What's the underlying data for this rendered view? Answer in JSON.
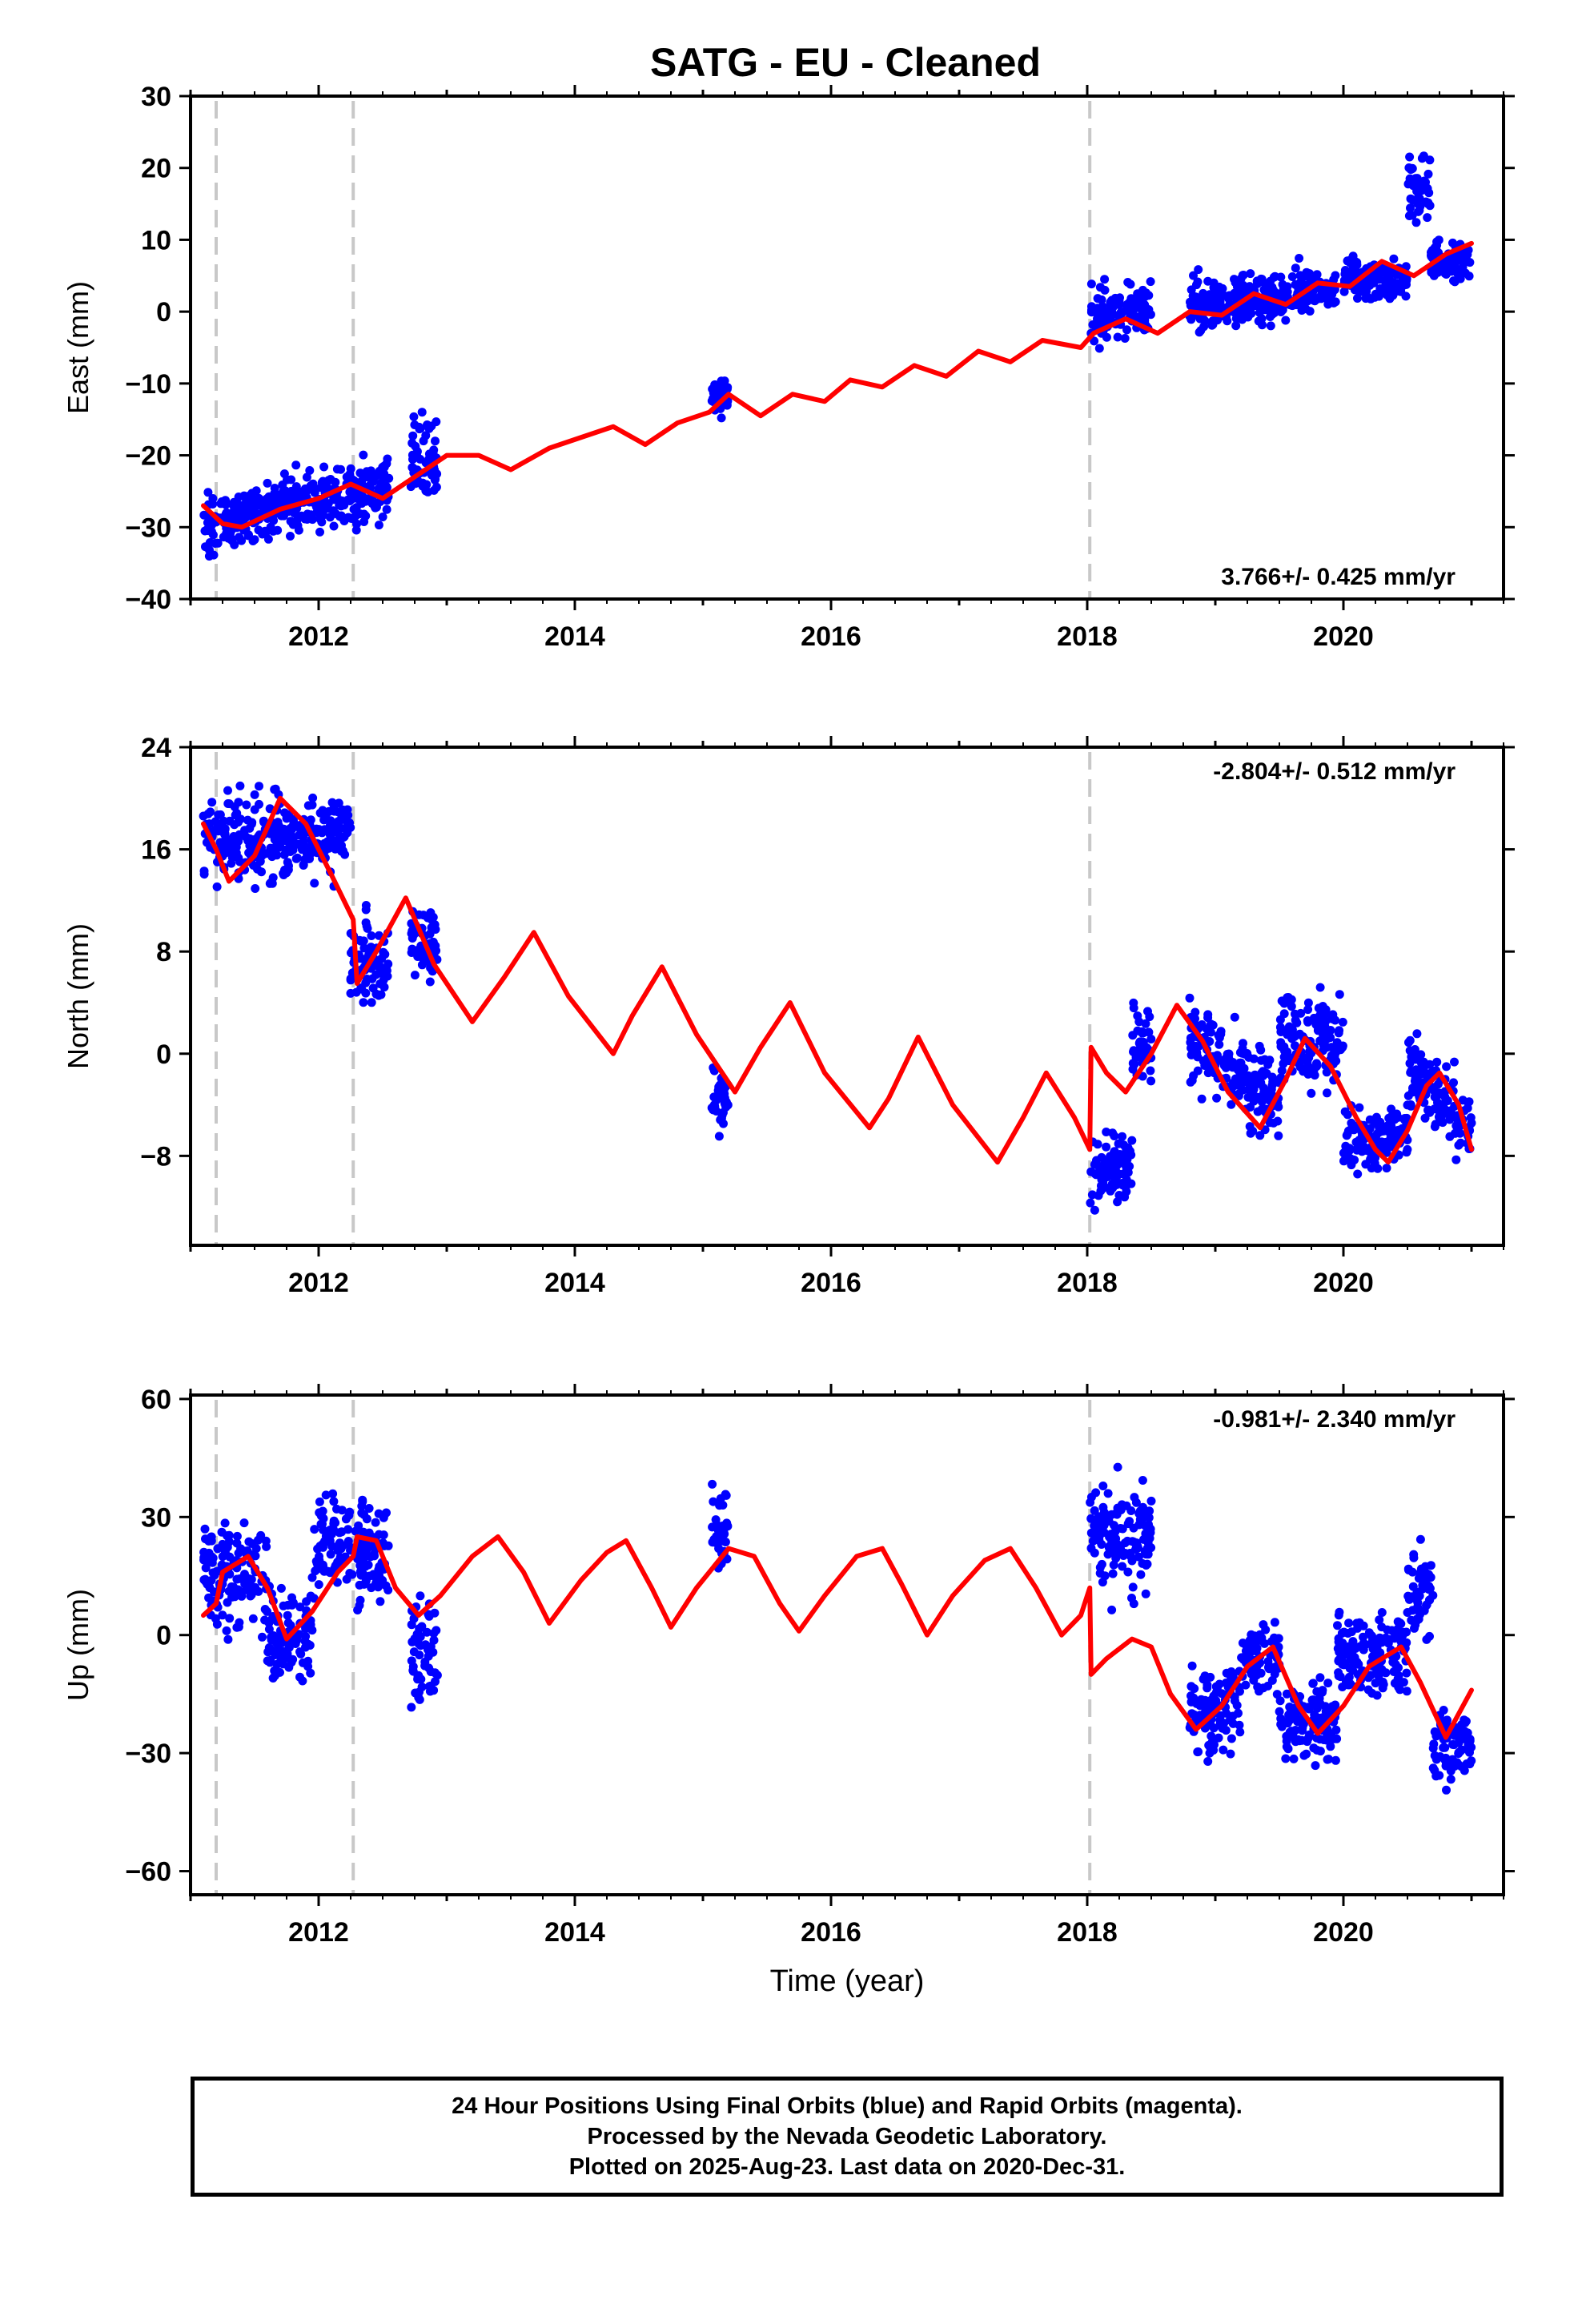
{
  "title": "SATG  - EU - Cleaned",
  "footer": {
    "line1": "24 Hour Positions Using Final Orbits (blue) and Rapid Orbits (magenta).",
    "line2": "Processed by the Nevada Geodetic Laboratory.",
    "line3": "Plotted on 2025-Aug-23. Last data on 2020-Dec-31."
  },
  "colors": {
    "data_points": "#0000ff",
    "model_fit": "#ff0000",
    "event_lines": "#c8c8c8"
  },
  "chart_data": [
    {
      "type": "scatter",
      "component": "east",
      "ylabel": "East (mm)",
      "xlabel": "",
      "xlim": [
        2011.0,
        2021.25
      ],
      "ylim": [
        -40,
        30
      ],
      "yticks": [
        30,
        20,
        10,
        0,
        -10,
        -20,
        -30,
        -40
      ],
      "xticks": [
        2012,
        2014,
        2016,
        2018,
        2020
      ],
      "velocity_label": "3.766+/- 0.425 mm/yr",
      "velocity_position": "bottom-right",
      "event_lines": [
        2011.2,
        2012.27,
        2018.02
      ],
      "segments": [
        {
          "start": 2011.1,
          "end": 2012.55,
          "center": -27,
          "spread": 4.5,
          "trend": 5.0
        },
        {
          "start": 2012.72,
          "end": 2012.93,
          "center": -20,
          "spread": 6.0,
          "trend": 0
        },
        {
          "start": 2015.07,
          "end": 2015.2,
          "center": -12,
          "spread": 2.5,
          "trend": 0
        },
        {
          "start": 2018.02,
          "end": 2018.5,
          "center": 0,
          "spread": 4.0,
          "trend": 0
        },
        {
          "start": 2018.8,
          "end": 2019.95,
          "center": 2,
          "spread": 3.5,
          "trend": 2.0
        },
        {
          "start": 2020.0,
          "end": 2020.5,
          "center": 4.5,
          "spread": 3.0,
          "trend": 0
        },
        {
          "start": 2020.5,
          "end": 2020.68,
          "center": 17,
          "spread": 6.0,
          "trend": 0
        },
        {
          "start": 2020.68,
          "end": 2021.0,
          "center": 7,
          "spread": 3.0,
          "trend": 0
        }
      ],
      "fit": [
        [
          2011.1,
          -27
        ],
        [
          2011.25,
          -29.5
        ],
        [
          2011.4,
          -30
        ],
        [
          2011.7,
          -27.5
        ],
        [
          2012.0,
          -26
        ],
        [
          2012.25,
          -24
        ],
        [
          2012.5,
          -26
        ],
        [
          2012.75,
          -23
        ],
        [
          2013.0,
          -20
        ],
        [
          2013.25,
          -20
        ],
        [
          2013.5,
          -22
        ],
        [
          2013.8,
          -19
        ],
        [
          2014.05,
          -17.5
        ],
        [
          2014.3,
          -16
        ],
        [
          2014.55,
          -18.5
        ],
        [
          2014.8,
          -15.5
        ],
        [
          2015.05,
          -14
        ],
        [
          2015.2,
          -11.5
        ],
        [
          2015.45,
          -14.5
        ],
        [
          2015.7,
          -11.5
        ],
        [
          2015.95,
          -12.5
        ],
        [
          2016.15,
          -9.5
        ],
        [
          2016.4,
          -10.5
        ],
        [
          2016.65,
          -7.5
        ],
        [
          2016.9,
          -9
        ],
        [
          2017.15,
          -5.5
        ],
        [
          2017.4,
          -7
        ],
        [
          2017.65,
          -4
        ],
        [
          2017.95,
          -5
        ],
        [
          2018.05,
          -3
        ],
        [
          2018.3,
          -1
        ],
        [
          2018.55,
          -3
        ],
        [
          2018.8,
          0
        ],
        [
          2019.05,
          -0.5
        ],
        [
          2019.3,
          2.5
        ],
        [
          2019.55,
          1
        ],
        [
          2019.8,
          4
        ],
        [
          2020.05,
          3.5
        ],
        [
          2020.3,
          7
        ],
        [
          2020.55,
          5
        ],
        [
          2020.8,
          8
        ],
        [
          2021.0,
          9.5
        ]
      ]
    },
    {
      "type": "scatter",
      "component": "north",
      "ylabel": "North (mm)",
      "xlabel": "",
      "xlim": [
        2011.0,
        2021.25
      ],
      "ylim": [
        -15,
        24
      ],
      "yticks": [
        24,
        16,
        8,
        0,
        -8
      ],
      "xticks": [
        2012,
        2014,
        2016,
        2018,
        2020
      ],
      "velocity_label": "-2.804+/- 0.512 mm/yr",
      "velocity_position": "top-right",
      "event_lines": [
        2011.2,
        2012.27,
        2018.02
      ],
      "segments": [
        {
          "start": 2011.1,
          "end": 2012.25,
          "center": 17,
          "spread": 3.5,
          "trend": 0
        },
        {
          "start": 2012.25,
          "end": 2012.55,
          "center": 7,
          "spread": 3.5,
          "trend": 0
        },
        {
          "start": 2012.72,
          "end": 2012.93,
          "center": 9,
          "spread": 3.0,
          "trend": 0
        },
        {
          "start": 2015.07,
          "end": 2015.2,
          "center": -3.5,
          "spread": 3.0,
          "trend": 0
        },
        {
          "start": 2018.02,
          "end": 2018.35,
          "center": -9,
          "spread": 3.0,
          "trend": 0
        },
        {
          "start": 2018.35,
          "end": 2018.5,
          "center": 1,
          "spread": 3.5,
          "trend": 0
        },
        {
          "start": 2018.8,
          "end": 2019.5,
          "center": -1.5,
          "spread": 3.5,
          "trend": -6.0
        },
        {
          "start": 2019.5,
          "end": 2020.0,
          "center": 1,
          "spread": 4.0,
          "trend": 0
        },
        {
          "start": 2020.0,
          "end": 2020.5,
          "center": -6.5,
          "spread": 2.5,
          "trend": 0
        },
        {
          "start": 2020.5,
          "end": 2021.0,
          "center": -3.5,
          "spread": 3.5,
          "trend": -4.0
        }
      ],
      "fit": [
        [
          2011.1,
          18
        ],
        [
          2011.2,
          16
        ],
        [
          2011.3,
          13.5
        ],
        [
          2011.5,
          15.5
        ],
        [
          2011.7,
          20
        ],
        [
          2011.9,
          18
        ],
        [
          2012.1,
          14
        ],
        [
          2012.27,
          10.5
        ],
        [
          2012.3,
          5.5
        ],
        [
          2012.45,
          8
        ],
        [
          2012.68,
          12.2
        ],
        [
          2012.9,
          7
        ],
        [
          2013.2,
          2.5
        ],
        [
          2013.45,
          6
        ],
        [
          2013.68,
          9.5
        ],
        [
          2013.95,
          4.5
        ],
        [
          2014.3,
          0
        ],
        [
          2014.45,
          3
        ],
        [
          2014.68,
          6.8
        ],
        [
          2014.95,
          1.5
        ],
        [
          2015.25,
          -3
        ],
        [
          2015.45,
          0.5
        ],
        [
          2015.68,
          4
        ],
        [
          2015.95,
          -1.5
        ],
        [
          2016.3,
          -5.8
        ],
        [
          2016.45,
          -3.5
        ],
        [
          2016.68,
          1.3
        ],
        [
          2016.95,
          -4
        ],
        [
          2017.3,
          -8.5
        ],
        [
          2017.5,
          -5
        ],
        [
          2017.68,
          -1.5
        ],
        [
          2017.9,
          -5
        ],
        [
          2018.02,
          -7.5
        ],
        [
          2018.03,
          0.5
        ],
        [
          2018.15,
          -1.5
        ],
        [
          2018.3,
          -3
        ],
        [
          2018.5,
          0
        ],
        [
          2018.7,
          3.8
        ],
        [
          2018.9,
          1
        ],
        [
          2019.1,
          -3
        ],
        [
          2019.35,
          -5.8
        ],
        [
          2019.55,
          -2
        ],
        [
          2019.7,
          1.2
        ],
        [
          2019.9,
          -1
        ],
        [
          2020.1,
          -5
        ],
        [
          2020.25,
          -7.5
        ],
        [
          2020.35,
          -8.5
        ],
        [
          2020.5,
          -6
        ],
        [
          2020.65,
          -2.5
        ],
        [
          2020.75,
          -1.5
        ],
        [
          2020.9,
          -4
        ],
        [
          2021.0,
          -7.5
        ]
      ]
    },
    {
      "type": "scatter",
      "component": "up",
      "ylabel": "Up (mm)",
      "xlabel": "Time (year)",
      "xlim": [
        2011.0,
        2021.25
      ],
      "ylim": [
        -66,
        61
      ],
      "yticks": [
        60,
        30,
        0,
        -30,
        -60
      ],
      "xticks": [
        2012,
        2014,
        2016,
        2018,
        2020
      ],
      "velocity_label": "-0.981+/- 2.340 mm/yr",
      "velocity_position": "top-right",
      "event_lines": [
        2011.2,
        2012.27,
        2018.02
      ],
      "segments": [
        {
          "start": 2011.1,
          "end": 2011.6,
          "center": 15,
          "spread": 14.0,
          "trend": 0
        },
        {
          "start": 2011.6,
          "end": 2011.95,
          "center": 0,
          "spread": 14.0,
          "trend": 0
        },
        {
          "start": 2011.95,
          "end": 2012.55,
          "center": 22,
          "spread": 13.0,
          "trend": 0
        },
        {
          "start": 2012.72,
          "end": 2012.93,
          "center": -3,
          "spread": 14.0,
          "trend": 0
        },
        {
          "start": 2015.07,
          "end": 2015.2,
          "center": 28,
          "spread": 12.0,
          "trend": 0
        },
        {
          "start": 2018.02,
          "end": 2018.5,
          "center": 25,
          "spread": 14.0,
          "trend": 0
        },
        {
          "start": 2018.8,
          "end": 2019.2,
          "center": -20,
          "spread": 12.0,
          "trend": 0
        },
        {
          "start": 2019.2,
          "end": 2019.5,
          "center": -5,
          "spread": 10.0,
          "trend": 0
        },
        {
          "start": 2019.5,
          "end": 2019.95,
          "center": -22,
          "spread": 12.0,
          "trend": 0
        },
        {
          "start": 2019.95,
          "end": 2020.5,
          "center": -5,
          "spread": 11.0,
          "trend": 0
        },
        {
          "start": 2020.5,
          "end": 2020.7,
          "center": 12,
          "spread": 13.0,
          "trend": 0
        },
        {
          "start": 2020.7,
          "end": 2021.0,
          "center": -28,
          "spread": 10.0,
          "trend": 0
        }
      ],
      "fit": [
        [
          2011.1,
          5
        ],
        [
          2011.2,
          8
        ],
        [
          2011.25,
          16
        ],
        [
          2011.45,
          20
        ],
        [
          2011.6,
          12
        ],
        [
          2011.75,
          -1
        ],
        [
          2011.95,
          6
        ],
        [
          2012.15,
          16
        ],
        [
          2012.27,
          20
        ],
        [
          2012.3,
          25
        ],
        [
          2012.45,
          24
        ],
        [
          2012.6,
          12
        ],
        [
          2012.78,
          5
        ],
        [
          2012.95,
          10
        ],
        [
          2013.2,
          20
        ],
        [
          2013.4,
          25
        ],
        [
          2013.6,
          16
        ],
        [
          2013.8,
          3
        ],
        [
          2014.05,
          14
        ],
        [
          2014.25,
          21
        ],
        [
          2014.4,
          24
        ],
        [
          2014.6,
          12
        ],
        [
          2014.75,
          2
        ],
        [
          2014.95,
          12
        ],
        [
          2015.2,
          22
        ],
        [
          2015.4,
          20
        ],
        [
          2015.6,
          8
        ],
        [
          2015.75,
          1
        ],
        [
          2015.95,
          10
        ],
        [
          2016.2,
          20
        ],
        [
          2016.4,
          22
        ],
        [
          2016.55,
          13
        ],
        [
          2016.75,
          0
        ],
        [
          2016.95,
          10
        ],
        [
          2017.2,
          19
        ],
        [
          2017.4,
          22
        ],
        [
          2017.6,
          12
        ],
        [
          2017.8,
          0
        ],
        [
          2017.95,
          5
        ],
        [
          2018.02,
          12
        ],
        [
          2018.03,
          -10
        ],
        [
          2018.15,
          -6
        ],
        [
          2018.35,
          -1
        ],
        [
          2018.5,
          -3
        ],
        [
          2018.65,
          -15
        ],
        [
          2018.85,
          -24
        ],
        [
          2019.05,
          -18
        ],
        [
          2019.25,
          -8
        ],
        [
          2019.45,
          -3
        ],
        [
          2019.65,
          -18
        ],
        [
          2019.8,
          -25
        ],
        [
          2020.0,
          -18
        ],
        [
          2020.2,
          -8
        ],
        [
          2020.45,
          -3
        ],
        [
          2020.6,
          -12
        ],
        [
          2020.8,
          -26
        ],
        [
          2021.0,
          -14
        ]
      ]
    }
  ]
}
